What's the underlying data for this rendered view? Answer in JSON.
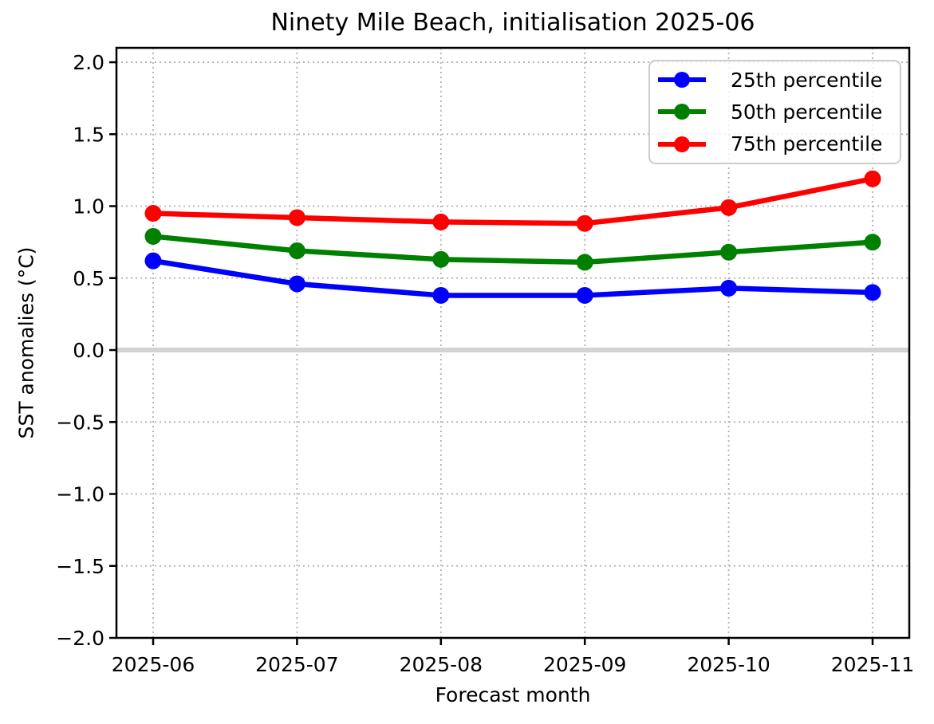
{
  "figure": {
    "title": "Ninety Mile Beach, initialisation 2025-06",
    "xlabel": "Forecast month",
    "ylabel": "SST anomalies (°C)"
  },
  "chart_data": {
    "type": "line",
    "title": "Ninety Mile Beach, initialisation 2025-06",
    "xlabel": "Forecast month",
    "ylabel": "SST anomalies (°C)",
    "categories": [
      "2025-06",
      "2025-07",
      "2025-08",
      "2025-09",
      "2025-10",
      "2025-11"
    ],
    "series": [
      {
        "name": "25th percentile",
        "color": "#0000ff",
        "values": [
          0.62,
          0.46,
          0.38,
          0.38,
          0.43,
          0.4
        ]
      },
      {
        "name": "50th percentile",
        "color": "#008000",
        "values": [
          0.79,
          0.69,
          0.63,
          0.61,
          0.68,
          0.75
        ]
      },
      {
        "name": "75th percentile",
        "color": "#ff0000",
        "values": [
          0.95,
          0.92,
          0.89,
          0.88,
          0.99,
          1.19
        ]
      }
    ],
    "ylim": [
      -2.0,
      2.1
    ],
    "yticks": {
      "values": [
        -2.0,
        -1.5,
        -1.0,
        -0.5,
        0.0,
        0.5,
        1.0,
        1.5,
        2.0
      ],
      "labels": [
        "−2.0",
        "−1.5",
        "−1.0",
        "−0.5",
        "0.0",
        "0.5",
        "1.0",
        "1.5",
        "2.0"
      ]
    },
    "grid": true,
    "zero_line": {
      "value": 0.0,
      "color": "#d3d3d3"
    },
    "legend_position": "upper right",
    "colors": {
      "grid": "#b0b0b0",
      "axis": "#000000",
      "zero_line": "#d3d3d3",
      "legend_border": "#cccccc"
    }
  }
}
